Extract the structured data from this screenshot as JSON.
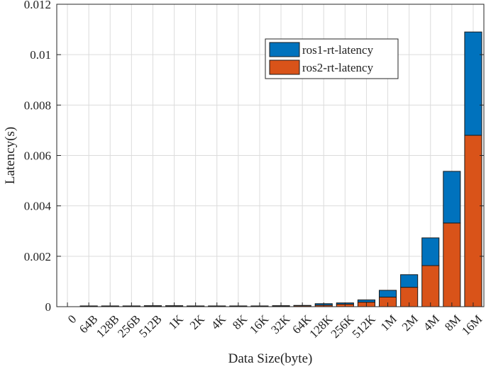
{
  "chart_data": {
    "type": "bar",
    "stacked": true,
    "categories": [
      "0",
      "64B",
      "128B",
      "256B",
      "512B",
      "1K",
      "2K",
      "4K",
      "8K",
      "16K",
      "32K",
      "64K",
      "128K",
      "256K",
      "512K",
      "1M",
      "2M",
      "4M",
      "8M",
      "16M"
    ],
    "series": [
      {
        "name": "ros2-rt-latency",
        "color": "#D95319",
        "values": [
          0,
          2e-05,
          2e-05,
          2e-05,
          2e-05,
          2e-05,
          2e-05,
          2e-05,
          2e-05,
          2e-05,
          3e-05,
          4e-05,
          6e-05,
          0.0001,
          0.00018,
          0.00038,
          0.00077,
          0.00163,
          0.00332,
          0.0068
        ]
      },
      {
        "name": "ros1-rt-latency",
        "color": "#0072BD",
        "values": [
          0,
          1e-05,
          1e-05,
          1e-05,
          2e-05,
          2e-05,
          1e-05,
          1e-05,
          1e-05,
          1e-05,
          1e-05,
          1e-05,
          6e-05,
          5e-05,
          9e-05,
          0.00027,
          0.0005,
          0.0011,
          0.00205,
          0.0041
        ]
      }
    ],
    "xlabel": "Data Size(byte)",
    "ylabel": "Latency(s)",
    "ylim": [
      0,
      0.012
    ],
    "yticks": [
      0,
      0.002,
      0.004,
      0.006,
      0.008,
      0.01,
      0.012
    ],
    "ytick_labels": [
      "0",
      "0.002",
      "0.004",
      "0.006",
      "0.008",
      "0.01",
      "0.012"
    ],
    "grid": true,
    "legend": {
      "placement": "top-right",
      "entries": [
        "ros1-rt-latency",
        "ros2-rt-latency"
      ],
      "colors": [
        "#0072BD",
        "#D95319"
      ]
    }
  }
}
